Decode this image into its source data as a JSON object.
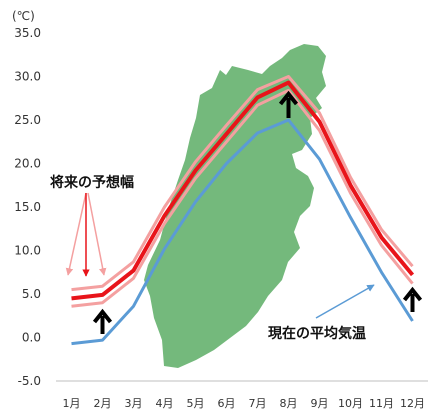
{
  "chart_data": {
    "type": "line",
    "y_unit": "(℃)",
    "ylim": [
      -5,
      35
    ],
    "y_ticks": [
      "35.0",
      "30.0",
      "25.0",
      "20.0",
      "15.0",
      "10.0",
      "5.0",
      "0.0",
      "-5.0"
    ],
    "categories": [
      "1月",
      "2月",
      "3月",
      "4月",
      "5月",
      "6月",
      "7月",
      "8月",
      "9月",
      "10月",
      "11月",
      "12月"
    ],
    "series": [
      {
        "key": "future_upper",
        "color": "#f4a0a0",
        "values": [
          5.5,
          5.9,
          8.7,
          15.0,
          20.2,
          24.4,
          28.5,
          30.0,
          25.8,
          18.4,
          12.4,
          8.2
        ]
      },
      {
        "key": "future_middle",
        "color": "#e8141a",
        "values": [
          4.5,
          4.9,
          7.7,
          14.0,
          19.2,
          23.4,
          27.6,
          29.3,
          24.8,
          17.5,
          11.5,
          7.2
        ]
      },
      {
        "key": "future_lower",
        "color": "#f4a0a0",
        "values": [
          3.6,
          4.0,
          6.8,
          13.1,
          18.3,
          22.5,
          26.7,
          28.4,
          23.8,
          16.6,
          10.6,
          6.2
        ]
      },
      {
        "name": "現在の平均気温",
        "key": "current",
        "color": "#5b9bd5",
        "values": [
          -0.7,
          -0.3,
          3.6,
          10.2,
          15.6,
          20.0,
          23.5,
          25.0,
          20.5,
          13.8,
          7.5,
          1.9
        ]
      }
    ],
    "annotations": {
      "future_range_label": "将来の予想幅",
      "current_label": "現在の平均気温"
    },
    "map_color": "#74b97c",
    "grid": false
  }
}
